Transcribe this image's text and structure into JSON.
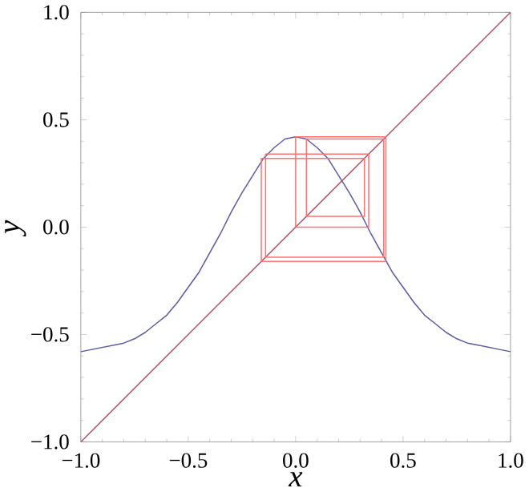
{
  "chart_data": {
    "type": "line",
    "xlabel": "x",
    "ylabel": "y",
    "xlim": [
      -1,
      1
    ],
    "ylim": [
      -1,
      1
    ],
    "xticks": [
      {
        "value": -1,
        "label": "−1.0"
      },
      {
        "value": -0.5,
        "label": "−0.5"
      },
      {
        "value": 0,
        "label": "0.0"
      },
      {
        "value": 0.5,
        "label": "0.5"
      },
      {
        "value": 1,
        "label": "1.0"
      }
    ],
    "yticks": [
      {
        "value": -1,
        "label": "−1.0"
      },
      {
        "value": -0.5,
        "label": "−0.5"
      },
      {
        "value": 0,
        "label": "0.0"
      },
      {
        "value": 0.5,
        "label": "0.5"
      },
      {
        "value": 1,
        "label": "1.0"
      }
    ],
    "grid": false,
    "legend": false,
    "marker": "none",
    "line_style": "solid",
    "series": [
      {
        "color": "#5b5ba8",
        "x": [
          -1,
          -0.95,
          -0.9,
          -0.85,
          -0.8,
          -0.75,
          -0.7,
          -0.65,
          -0.6,
          -0.55,
          -0.5,
          -0.45,
          -0.4,
          -0.35,
          -0.3,
          -0.25,
          -0.2,
          -0.15,
          -0.1,
          -0.05,
          0,
          0.05,
          0.1,
          0.15,
          0.2,
          0.25,
          0.3,
          0.35,
          0.4,
          0.45,
          0.5,
          0.55,
          0.6,
          0.65,
          0.7,
          0.75,
          0.8,
          0.85,
          0.9,
          0.95,
          1
        ],
        "values": [
          -0.58,
          -0.57,
          -0.56,
          -0.55,
          -0.54,
          -0.52,
          -0.49,
          -0.45,
          -0.41,
          -0.35,
          -0.28,
          -0.21,
          -0.12,
          -0.03,
          0.07,
          0.16,
          0.24,
          0.32,
          0.37,
          0.41,
          0.42,
          0.41,
          0.37,
          0.32,
          0.24,
          0.16,
          0.07,
          -0.03,
          -0.12,
          -0.21,
          -0.28,
          -0.35,
          -0.41,
          -0.45,
          -0.49,
          -0.52,
          -0.54,
          -0.55,
          -0.56,
          -0.57,
          -0.58
        ]
      },
      {
        "color": "#b05060",
        "x": [
          -1,
          1
        ],
        "values": [
          -1,
          1
        ]
      },
      {
        "color": "#ff7070",
        "x": [
          0,
          0,
          0.42,
          0.42,
          -0.16,
          -0.16,
          0.32,
          0.32,
          0.05
        ],
        "values": [
          0,
          0.42,
          0.42,
          -0.16,
          -0.16,
          0.32,
          0.32,
          0.05,
          0.05
        ]
      },
      {
        "color": "#ff7070",
        "x": [
          0.05,
          0.05,
          0.41,
          0.41,
          -0.14,
          -0.14,
          0.34,
          0.34,
          0.0
        ],
        "values": [
          0.05,
          0.41,
          0.41,
          -0.14,
          -0.14,
          0.34,
          0.34,
          0.0,
          0.0
        ]
      }
    ]
  }
}
